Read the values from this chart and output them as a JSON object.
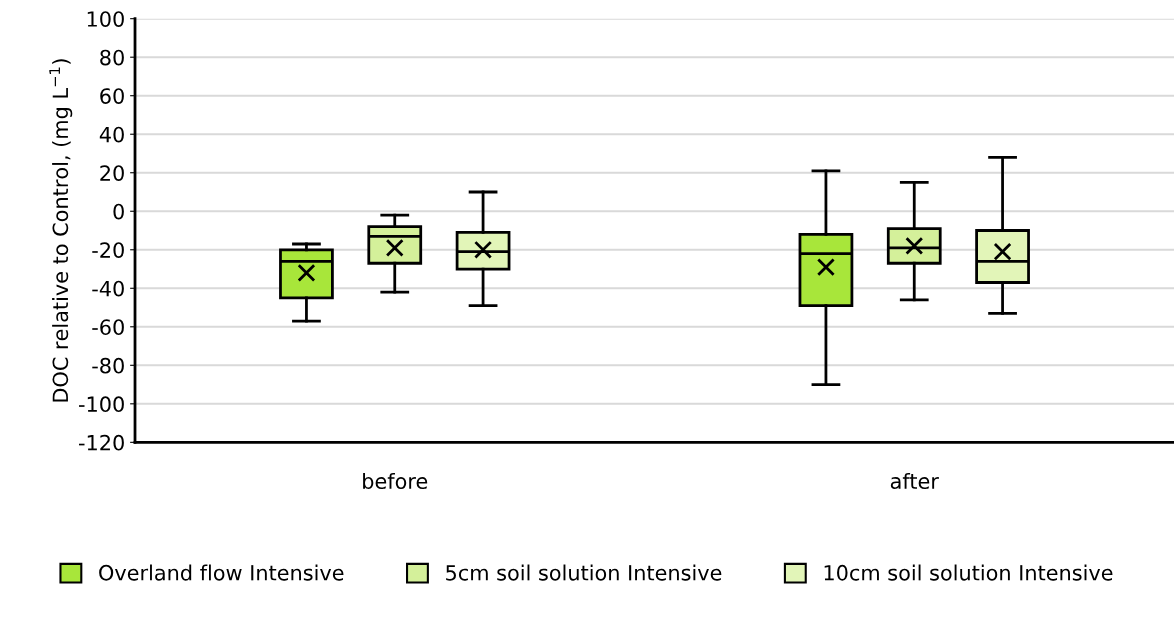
{
  "chart_data": {
    "type": "box",
    "ylabel": "DOC relative to Control, (mg L$^{−1}$)",
    "categories": [
      "before",
      "after"
    ],
    "series": [
      {
        "name": "Overland flow Intensive",
        "color": "#a8e63a",
        "boxes": [
          {
            "low": -57,
            "q1": -45,
            "median": -26,
            "q3": -20,
            "high": -17,
            "mean": -32
          },
          {
            "low": -90,
            "q1": -49,
            "median": -22,
            "q3": -12,
            "high": 21,
            "mean": -29
          }
        ]
      },
      {
        "name": "5cm soil solution Intensive",
        "color": "#d4f09a",
        "boxes": [
          {
            "low": -42,
            "q1": -27,
            "median": -13,
            "q3": -8,
            "high": -2,
            "mean": -19
          },
          {
            "low": -46,
            "q1": -27,
            "median": -19,
            "q3": -9,
            "high": 15,
            "mean": -18
          }
        ]
      },
      {
        "name": "10cm soil solution Intensive",
        "color": "#e2f5b8",
        "boxes": [
          {
            "low": -49,
            "q1": -30,
            "median": -21,
            "q3": -11,
            "high": 10,
            "mean": -20
          },
          {
            "low": -53,
            "q1": -37,
            "median": -26,
            "q3": -10,
            "high": 28,
            "mean": -21
          }
        ]
      }
    ],
    "ylim": [
      -120,
      100
    ],
    "yticks": [
      -120,
      -100,
      -80,
      -60,
      -40,
      -20,
      0,
      20,
      40,
      60,
      80,
      100
    ],
    "grid": "y",
    "legend": "bottom"
  }
}
